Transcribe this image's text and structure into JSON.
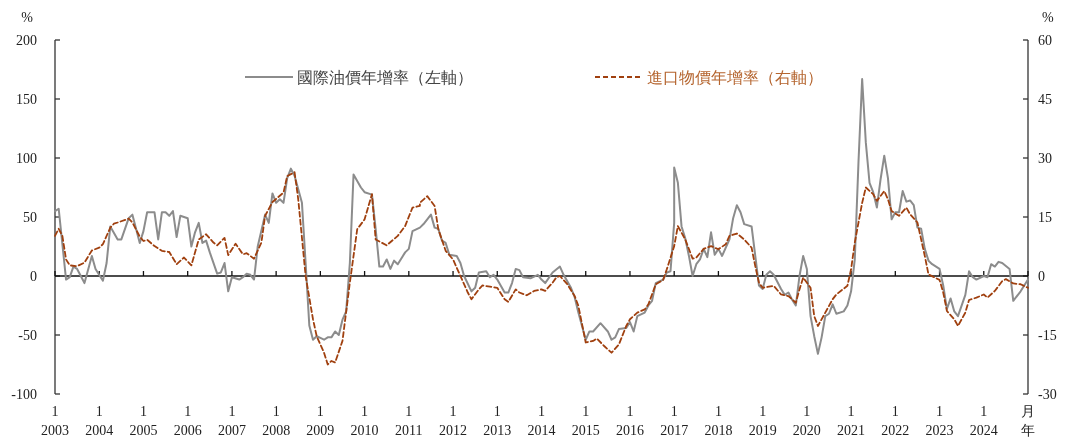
{
  "chart_data": {
    "type": "line",
    "ylabel": "%",
    "y2label": "%",
    "legend": "top",
    "grid": false,
    "ref_lines": [
      {
        "axis": "y",
        "value": 0,
        "color": "#111111"
      }
    ],
    "xlim": [
      "2003-01",
      "2025-01"
    ],
    "xticks": [
      {
        "value": "2003-01",
        "label": "1\n2003"
      },
      {
        "value": "2004-01",
        "label": "1\n2004"
      },
      {
        "value": "2005-01",
        "label": "1\n2005"
      },
      {
        "value": "2006-01",
        "label": "1\n2006"
      },
      {
        "value": "2007-01",
        "label": "1\n2007"
      },
      {
        "value": "2008-01",
        "label": "1\n2008"
      },
      {
        "value": "2009-01",
        "label": "1\n2009"
      },
      {
        "value": "2010-01",
        "label": "1\n2010"
      },
      {
        "value": "2011-01",
        "label": "1\n2011"
      },
      {
        "value": "2012-01",
        "label": "1\n2012"
      },
      {
        "value": "2013-01",
        "label": "1\n2013"
      },
      {
        "value": "2014-01",
        "label": "1\n2014"
      },
      {
        "value": "2015-01",
        "label": "1\n2015"
      },
      {
        "value": "2016-01",
        "label": "1\n2016"
      },
      {
        "value": "2017-01",
        "label": "1\n2017"
      },
      {
        "value": "2018-01",
        "label": "1\n2018"
      },
      {
        "value": "2019-01",
        "label": "1\n2019"
      },
      {
        "value": "2020-01",
        "label": "1\n2020"
      },
      {
        "value": "2021-01",
        "label": "1\n2021"
      },
      {
        "value": "2022-01",
        "label": "1\n2022"
      },
      {
        "value": "2023-01",
        "label": "1\n2023"
      },
      {
        "value": "2024-01",
        "label": "1\n2024"
      },
      {
        "value": "2025-01",
        "label": "月年"
      }
    ],
    "ylim": [
      -100,
      200
    ],
    "yticks": [
      -100,
      -50,
      0,
      50,
      100,
      150,
      200
    ],
    "y2lim": [
      -30,
      60
    ],
    "y2ticks": [
      -30,
      -15,
      0,
      15,
      30,
      45,
      60
    ],
    "series": [
      {
        "name": "國際油價年增率（左軸）",
        "color": "#8c8c8c",
        "line_style": "solid",
        "axis": "y",
        "x": [
          "2003-01",
          "2003-02",
          "2003-04",
          "2003-05",
          "2003-06",
          "2003-07",
          "2003-09",
          "2003-11",
          "2003-12",
          "2004-02",
          "2004-03",
          "2004-04",
          "2004-06",
          "2004-07",
          "2004-09",
          "2004-10",
          "2004-12",
          "2005-01",
          "2005-02",
          "2005-04",
          "2005-05",
          "2005-06",
          "2005-07",
          "2005-08",
          "2005-09",
          "2005-10",
          "2005-11",
          "2006-01",
          "2006-02",
          "2006-03",
          "2006-04",
          "2006-05",
          "2006-06",
          "2006-07",
          "2006-09",
          "2006-10",
          "2006-11",
          "2006-12",
          "2007-01",
          "2007-03",
          "2007-04",
          "2007-05",
          "2007-06",
          "2007-07",
          "2007-08",
          "2007-10",
          "2007-11",
          "2007-12",
          "2008-01",
          "2008-02",
          "2008-03",
          "2008-04",
          "2008-05",
          "2008-06",
          "2008-08",
          "2008-09",
          "2008-10",
          "2008-11",
          "2008-12",
          "2009-02",
          "2009-03",
          "2009-04",
          "2009-05",
          "2009-06",
          "2009-07",
          "2009-08",
          "2009-09",
          "2009-10",
          "2009-12",
          "2010-01",
          "2010-03",
          "2010-04",
          "2010-05",
          "2010-06",
          "2010-07",
          "2010-08",
          "2010-09",
          "2010-10",
          "2010-12",
          "2011-01",
          "2011-02",
          "2011-04",
          "2011-05",
          "2011-07",
          "2011-08",
          "2011-09",
          "2011-10",
          "2011-11",
          "2011-12",
          "2012-02",
          "2012-03",
          "2012-04",
          "2012-06",
          "2012-07",
          "2012-08",
          "2012-10",
          "2012-11",
          "2012-12",
          "2013-01",
          "2013-03",
          "2013-04",
          "2013-05",
          "2013-06",
          "2013-07",
          "2013-08",
          "2013-10",
          "2013-12",
          "2014-01",
          "2014-02",
          "2014-04",
          "2014-06",
          "2014-07",
          "2014-09",
          "2014-10",
          "2014-11",
          "2015-01",
          "2015-02",
          "2015-03",
          "2015-05",
          "2015-07",
          "2015-08",
          "2015-09",
          "2015-10",
          "2015-12",
          "2016-01",
          "2016-02",
          "2016-03",
          "2016-05",
          "2016-06",
          "2016-07",
          "2016-08",
          "2016-10",
          "2016-11",
          "2016-12",
          "2017-01",
          "2017-01",
          "2017-02",
          "2017-03",
          "2017-04",
          "2017-05",
          "2017-06",
          "2017-07",
          "2017-08",
          "2017-09",
          "2017-10",
          "2017-11",
          "2017-12",
          "2018-01",
          "2018-02",
          "2018-04",
          "2018-05",
          "2018-06",
          "2018-07",
          "2018-08",
          "2018-10",
          "2018-11",
          "2018-12",
          "2019-01",
          "2019-02",
          "2019-03",
          "2019-04",
          "2019-06",
          "2019-07",
          "2019-08",
          "2019-09",
          "2019-10",
          "2019-11",
          "2019-12",
          "2020-01",
          "2020-02",
          "2020-03",
          "2020-04",
          "2020-05",
          "2020-06",
          "2020-07",
          "2020-08",
          "2020-09",
          "2020-11",
          "2020-12",
          "2021-01",
          "2021-02",
          "2021-03",
          "2021-04",
          "2021-05",
          "2021-06",
          "2021-07",
          "2021-08",
          "2021-09",
          "2021-10",
          "2021-11",
          "2021-12",
          "2022-01",
          "2022-02",
          "2022-03",
          "2022-04",
          "2022-05",
          "2022-06",
          "2022-07",
          "2022-08",
          "2022-09",
          "2022-10",
          "2022-11",
          "2023-01",
          "2023-02",
          "2023-03",
          "2023-04",
          "2023-05",
          "2023-06",
          "2023-08",
          "2023-09",
          "2023-10",
          "2023-11",
          "2024-01",
          "2024-02",
          "2024-03",
          "2024-04",
          "2024-05",
          "2024-06",
          "2024-08",
          "2024-09",
          "2024-11",
          "2025-01"
        ],
        "values": [
          55,
          57,
          -3,
          -1,
          8,
          6,
          -6,
          17,
          6,
          -4,
          11,
          42,
          31,
          31,
          49,
          52,
          28,
          38,
          54,
          54,
          31,
          54,
          54,
          51,
          55,
          33,
          51,
          49,
          25,
          37,
          45,
          28,
          30,
          20,
          2,
          3,
          11,
          -13,
          -1,
          -3,
          -1,
          2,
          1,
          -3,
          25,
          52,
          45,
          70,
          62,
          65,
          62,
          83,
          91,
          85,
          62,
          11,
          -42,
          -54,
          -51,
          -54,
          -52,
          -52,
          -47,
          -50,
          -37,
          -30,
          11,
          86,
          75,
          71,
          69,
          40,
          8,
          8,
          14,
          6,
          13,
          10,
          20,
          23,
          38,
          41,
          44,
          52,
          41,
          40,
          30,
          28,
          18,
          17,
          11,
          0,
          -13,
          -10,
          3,
          4,
          -1,
          1,
          -3,
          -14,
          -14,
          -6,
          6,
          5,
          -1,
          -2,
          1,
          -3,
          -6,
          3,
          8,
          1,
          -10,
          -18,
          -31,
          -54,
          -47,
          -47,
          -40,
          -47,
          -54,
          -52,
          -45,
          -44,
          -39,
          -47,
          -34,
          -31,
          -25,
          -21,
          -6,
          -3,
          3,
          4,
          45,
          92,
          79,
          42,
          32,
          17,
          0,
          10,
          14,
          23,
          16,
          37,
          18,
          23,
          17,
          31,
          49,
          60,
          54,
          44,
          42,
          17,
          -8,
          -11,
          1,
          4,
          1,
          -11,
          -16,
          -14,
          -20,
          -25,
          0,
          17,
          6,
          -34,
          -51,
          -66,
          -52,
          -34,
          -32,
          -24,
          -32,
          -30,
          -25,
          -13,
          14,
          96,
          167,
          113,
          79,
          71,
          58,
          82,
          102,
          83,
          48,
          54,
          54,
          72,
          63,
          64,
          60,
          41,
          40,
          23,
          13,
          10,
          6,
          -8,
          -28,
          -19,
          -30,
          -34,
          -16,
          4,
          -1,
          -3,
          0,
          -1,
          10,
          8,
          12,
          11,
          6,
          -21,
          -13,
          -3
        ]
      },
      {
        "name": "進口物價年增率（右軸）",
        "color": "#a0400f",
        "line_style": "dashed",
        "axis": "y2",
        "x": [
          "2003-01",
          "2003-02",
          "2003-03",
          "2003-04",
          "2003-05",
          "2003-07",
          "2003-09",
          "2003-11",
          "2004-01",
          "2004-02",
          "2004-04",
          "2004-05",
          "2004-06",
          "2004-09",
          "2004-10",
          "2004-12",
          "2005-01",
          "2005-02",
          "2005-04",
          "2005-06",
          "2005-08",
          "2005-10",
          "2005-12",
          "2006-02",
          "2006-04",
          "2006-06",
          "2006-08",
          "2006-09",
          "2006-11",
          "2006-12",
          "2007-02",
          "2007-04",
          "2007-05",
          "2007-07",
          "2007-09",
          "2007-10",
          "2007-12",
          "2008-03",
          "2008-04",
          "2008-06",
          "2008-07",
          "2008-09",
          "2008-11",
          "2008-12",
          "2009-02",
          "2009-03",
          "2009-04",
          "2009-05",
          "2009-07",
          "2009-09",
          "2009-11",
          "2010-01",
          "2010-03",
          "2010-04",
          "2010-07",
          "2010-10",
          "2010-12",
          "2011-02",
          "2011-04",
          "2011-04",
          "2011-06",
          "2011-08",
          "2011-09",
          "2011-11",
          "2012-01",
          "2012-03",
          "2012-05",
          "2012-06",
          "2012-08",
          "2012-09",
          "2012-11",
          "2013-01",
          "2013-03",
          "2013-04",
          "2013-06",
          "2013-07",
          "2013-09",
          "2013-11",
          "2014-01",
          "2014-02",
          "2014-04",
          "2014-05",
          "2014-06",
          "2014-08",
          "2014-10",
          "2014-11",
          "2015-01",
          "2015-03",
          "2015-04",
          "2015-06",
          "2015-08",
          "2015-10",
          "2015-12",
          "2016-01",
          "2016-03",
          "2016-05",
          "2016-06",
          "2016-08",
          "2016-10",
          "2016-11",
          "2017-01",
          "2017-02",
          "2017-04",
          "2017-06",
          "2017-07",
          "2017-09",
          "2017-11",
          "2018-01",
          "2018-03",
          "2018-04",
          "2018-06",
          "2018-08",
          "2018-10",
          "2018-11",
          "2018-12",
          "2019-01",
          "2019-04",
          "2019-06",
          "2019-08",
          "2019-10",
          "2019-11",
          "2019-12",
          "2020-02",
          "2020-03",
          "2020-04",
          "2020-06",
          "2020-08",
          "2020-09",
          "2020-12",
          "2021-01",
          "2021-02",
          "2021-04",
          "2021-05",
          "2021-07",
          "2021-08",
          "2021-10",
          "2021-11",
          "2021-12",
          "2022-02",
          "2022-04",
          "2022-05",
          "2022-07",
          "2022-09",
          "2022-10",
          "2023-01",
          "2023-02",
          "2023-03",
          "2023-05",
          "2023-06",
          "2023-08",
          "2023-09",
          "2023-11",
          "2024-01",
          "2024-02",
          "2024-04",
          "2024-06",
          "2024-07",
          "2024-09",
          "2024-11",
          "2025-01"
        ],
        "values": [
          10.2,
          12,
          10.2,
          4.2,
          2.7,
          2.5,
          3.4,
          6.5,
          7.2,
          8.1,
          12.3,
          13.3,
          13.6,
          14.6,
          13.6,
          10,
          8.9,
          9.2,
          7.6,
          6.4,
          6.1,
          3,
          4.7,
          2.7,
          9.3,
          10.6,
          8.5,
          7.8,
          9.7,
          5.3,
          8.2,
          5.5,
          5.8,
          4.4,
          8.5,
          15.3,
          18.8,
          21.2,
          25.4,
          26.4,
          19.5,
          0,
          -11,
          -15.3,
          -19.5,
          -22.5,
          -21.6,
          -22,
          -16.5,
          -1.7,
          11.9,
          14.4,
          20.8,
          9.3,
          7.8,
          10.2,
          12.7,
          17.4,
          17.8,
          18.6,
          20.3,
          17.8,
          11.9,
          6.4,
          4.2,
          0,
          -4.2,
          -5.9,
          -3.4,
          -2.4,
          -2.7,
          -3,
          -5.9,
          -6.6,
          -3.4,
          -4.2,
          -4.9,
          -3.8,
          -3.4,
          -3.8,
          -1.7,
          -0.4,
          0,
          -2.1,
          -5.1,
          -7.6,
          -16.9,
          -16.5,
          -15.9,
          -17.8,
          -19.5,
          -17.4,
          -12.7,
          -11,
          -9.3,
          -8.5,
          -7.2,
          -2.1,
          -1,
          1.7,
          7.6,
          12.7,
          9.3,
          4.4,
          4.7,
          6.9,
          7.6,
          6.8,
          8.1,
          10.2,
          10.8,
          9.3,
          7.2,
          2.5,
          -1.7,
          -3,
          -2.5,
          -4.7,
          -5.1,
          -6.8,
          -3.4,
          -0.4,
          -3,
          -10.2,
          -12.7,
          -9.3,
          -5.9,
          -4.7,
          -2.5,
          1.7,
          8.5,
          18.6,
          22.5,
          20.8,
          19.1,
          21.6,
          19.5,
          16.5,
          15.3,
          17.4,
          15.7,
          13.6,
          5.1,
          0.4,
          -1,
          -4.2,
          -8.9,
          -11,
          -12.7,
          -9.3,
          -6.1,
          -5.5,
          -4.7,
          -5.5,
          -3.8,
          -1.3,
          -0.8,
          -1.9,
          -2.1,
          -3
        ]
      }
    ]
  }
}
